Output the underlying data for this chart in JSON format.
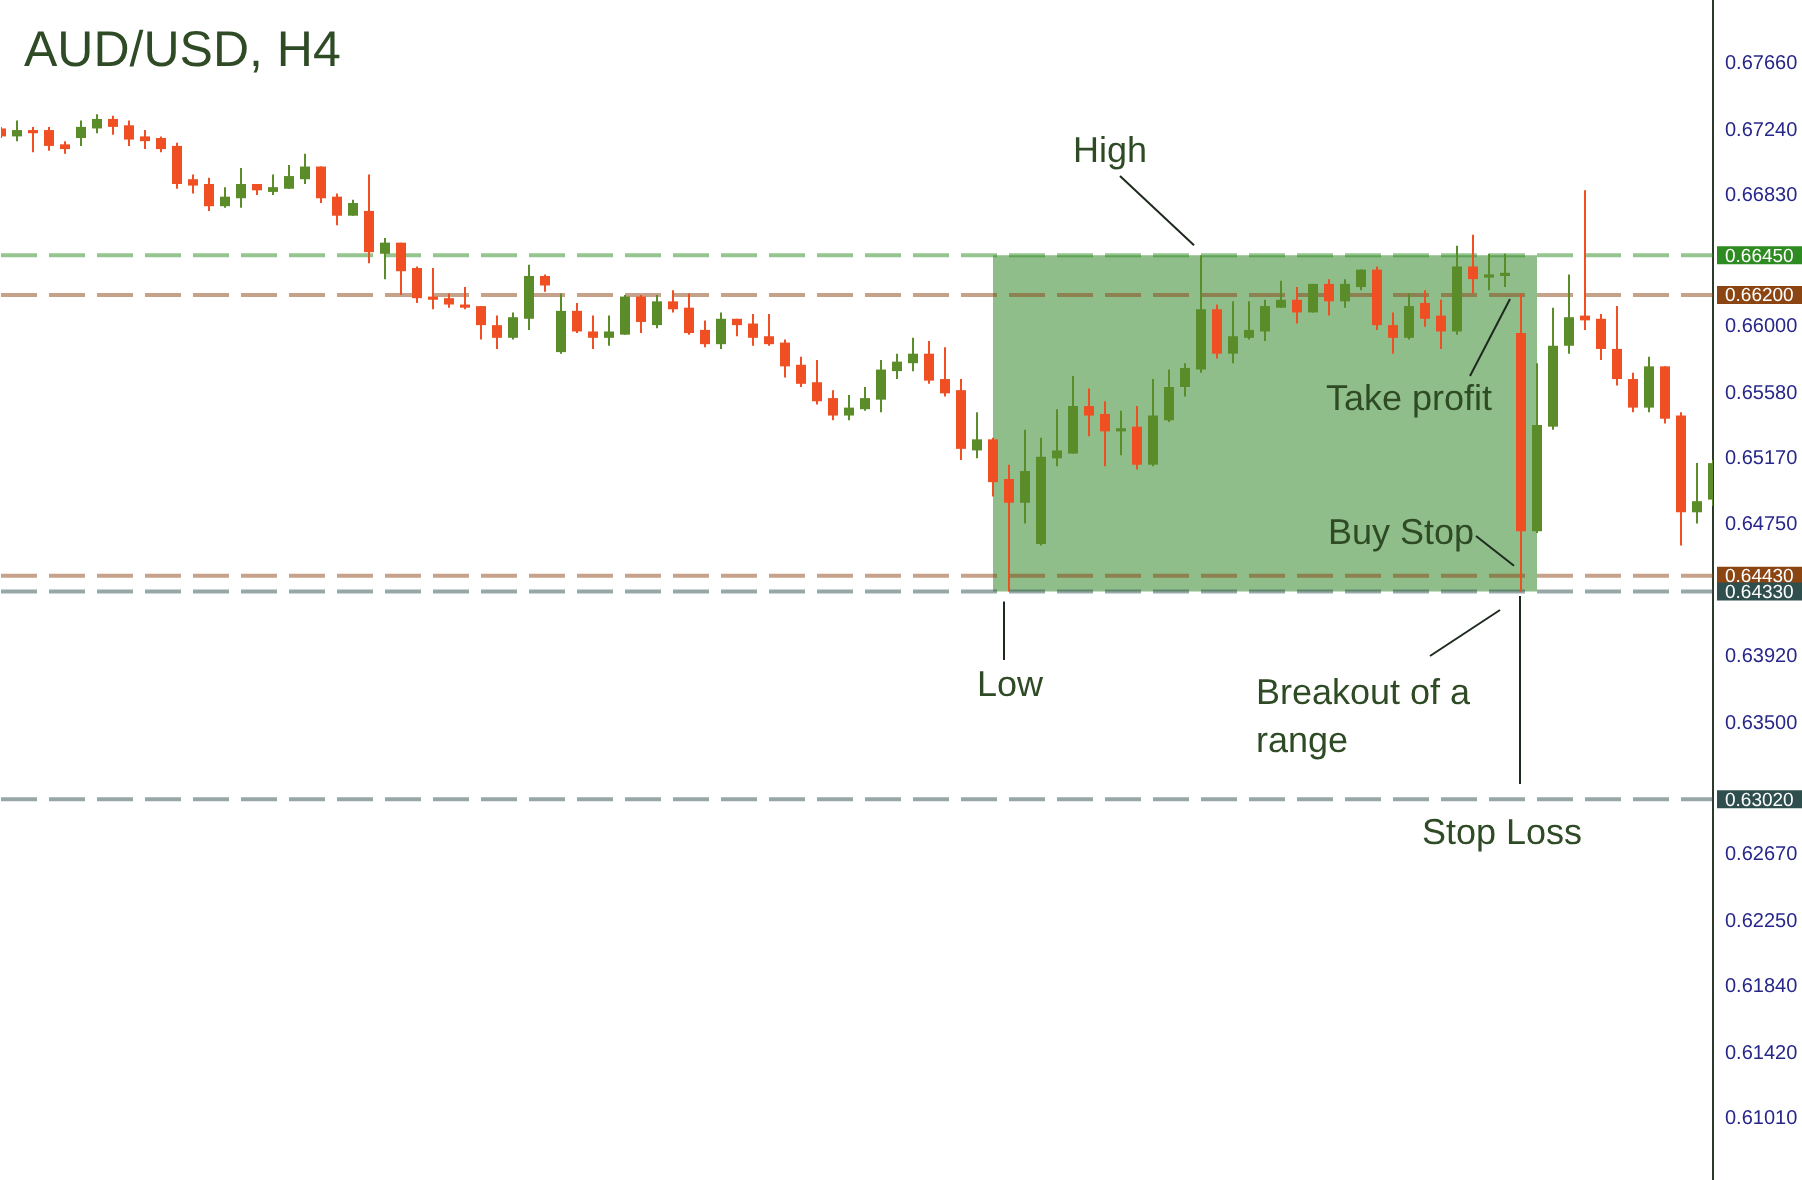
{
  "chart_data": {
    "type": "candlestick",
    "title": "AUD/USD, H4",
    "categories": [
      null,
      null,
      null,
      null,
      null,
      null,
      null,
      null,
      null,
      null,
      null,
      null,
      null,
      null,
      null,
      null,
      null,
      null,
      null,
      null,
      null,
      null,
      null,
      null,
      null,
      null,
      null,
      null,
      null,
      null,
      null,
      null,
      null,
      null,
      null,
      null,
      null,
      null,
      null,
      null,
      null,
      null,
      null,
      null,
      null,
      null,
      null,
      null,
      null,
      null,
      null,
      null,
      null,
      null,
      null,
      null,
      null,
      null,
      null,
      null,
      null,
      null,
      null,
      null,
      null,
      null,
      null,
      null,
      null,
      null,
      null,
      null,
      null,
      null,
      null,
      null,
      null,
      null,
      null,
      null,
      null,
      null,
      null,
      null,
      null,
      null,
      null,
      null,
      null,
      null,
      null,
      null,
      null,
      null,
      null,
      null,
      null,
      null,
      null,
      null,
      null,
      null,
      null,
      null,
      null,
      null,
      null,
      null
    ],
    "ohlc": [
      [
        0.6725,
        0.6726,
        0.6719,
        0.672
      ],
      [
        0.672,
        0.673,
        0.6717,
        0.6724
      ],
      [
        0.6724,
        0.6726,
        0.671,
        0.6722
      ],
      [
        0.6724,
        0.6726,
        0.6711,
        0.6714
      ],
      [
        0.6715,
        0.6717,
        0.6709,
        0.6712
      ],
      [
        0.6719,
        0.673,
        0.6714,
        0.6726
      ],
      [
        0.6725,
        0.6734,
        0.6722,
        0.6731
      ],
      [
        0.6731,
        0.6733,
        0.6721,
        0.6726
      ],
      [
        0.6727,
        0.673,
        0.6714,
        0.6718
      ],
      [
        0.672,
        0.6724,
        0.6712,
        0.6717
      ],
      [
        0.6719,
        0.672,
        0.671,
        0.6712
      ],
      [
        0.6714,
        0.6716,
        0.6687,
        0.669
      ],
      [
        0.6693,
        0.6696,
        0.6684,
        0.6689
      ],
      [
        0.669,
        0.6694,
        0.6673,
        0.6676
      ],
      [
        0.6676,
        0.6688,
        0.6675,
        0.6682
      ],
      [
        0.6681,
        0.67,
        0.6675,
        0.669
      ],
      [
        0.669,
        0.669,
        0.6683,
        0.6686
      ],
      [
        0.6685,
        0.6696,
        0.6683,
        0.6688
      ],
      [
        0.6687,
        0.6702,
        0.6687,
        0.6695
      ],
      [
        0.6693,
        0.6709,
        0.669,
        0.6701
      ],
      [
        0.6701,
        0.6701,
        0.6678,
        0.6681
      ],
      [
        0.6682,
        0.6684,
        0.6664,
        0.667
      ],
      [
        0.667,
        0.668,
        0.667,
        0.6678
      ],
      [
        0.6673,
        0.6696,
        0.664,
        0.6647
      ],
      [
        0.6646,
        0.6656,
        0.663,
        0.6653
      ],
      [
        0.6653,
        0.6653,
        0.662,
        0.6635
      ],
      [
        0.6637,
        0.6638,
        0.6615,
        0.6618
      ],
      [
        0.6619,
        0.6637,
        0.6611,
        0.6617
      ],
      [
        0.6618,
        0.6621,
        0.6612,
        0.6614
      ],
      [
        0.6614,
        0.6625,
        0.6611,
        0.6612
      ],
      [
        0.6613,
        0.6613,
        0.6592,
        0.6601
      ],
      [
        0.6601,
        0.6607,
        0.6586,
        0.6593
      ],
      [
        0.6593,
        0.6609,
        0.6592,
        0.6606
      ],
      [
        0.6605,
        0.6639,
        0.6598,
        0.6632
      ],
      [
        0.6632,
        0.6633,
        0.6622,
        0.6626
      ],
      [
        0.6584,
        0.6621,
        0.6583,
        0.661
      ],
      [
        0.661,
        0.6615,
        0.6596,
        0.6597
      ],
      [
        0.6597,
        0.6607,
        0.6586,
        0.6593
      ],
      [
        0.6593,
        0.6607,
        0.6588,
        0.6597
      ],
      [
        0.6595,
        0.662,
        0.6595,
        0.6619
      ],
      [
        0.6619,
        0.662,
        0.6596,
        0.6603
      ],
      [
        0.6601,
        0.662,
        0.6599,
        0.6616
      ],
      [
        0.6616,
        0.6623,
        0.6609,
        0.6611
      ],
      [
        0.6612,
        0.6621,
        0.6595,
        0.6596
      ],
      [
        0.6598,
        0.6604,
        0.6587,
        0.6589
      ],
      [
        0.6589,
        0.6609,
        0.6586,
        0.6605
      ],
      [
        0.6605,
        0.6605,
        0.6594,
        0.6601
      ],
      [
        0.6602,
        0.6608,
        0.6588,
        0.6593
      ],
      [
        0.6594,
        0.6608,
        0.6588,
        0.6589
      ],
      [
        0.659,
        0.6592,
        0.6568,
        0.6575
      ],
      [
        0.6576,
        0.6581,
        0.6562,
        0.6564
      ],
      [
        0.6565,
        0.6579,
        0.6551,
        0.6553
      ],
      [
        0.6555,
        0.656,
        0.6541,
        0.6544
      ],
      [
        0.6544,
        0.6557,
        0.6541,
        0.6549
      ],
      [
        0.6548,
        0.6562,
        0.6547,
        0.6555
      ],
      [
        0.6554,
        0.6579,
        0.6546,
        0.6573
      ],
      [
        0.6572,
        0.6583,
        0.6567,
        0.6578
      ],
      [
        0.6577,
        0.6593,
        0.6572,
        0.6583
      ],
      [
        0.6583,
        0.6591,
        0.6564,
        0.6566
      ],
      [
        0.6567,
        0.6587,
        0.6556,
        0.6558
      ],
      [
        0.656,
        0.6567,
        0.6516,
        0.6523
      ],
      [
        0.6522,
        0.6546,
        0.6517,
        0.6529
      ],
      [
        0.6529,
        0.653,
        0.6493,
        0.6502
      ],
      [
        0.6504,
        0.6513,
        0.6433,
        0.6489
      ],
      [
        0.6489,
        0.6535,
        0.6476,
        0.6509
      ],
      [
        0.6463,
        0.653,
        0.6462,
        0.6518
      ],
      [
        0.6517,
        0.6548,
        0.6512,
        0.6522
      ],
      [
        0.652,
        0.6569,
        0.652,
        0.655
      ],
      [
        0.655,
        0.6561,
        0.6531,
        0.6544
      ],
      [
        0.6545,
        0.6553,
        0.6512,
        0.6534
      ],
      [
        0.6534,
        0.6547,
        0.6519,
        0.6536
      ],
      [
        0.6537,
        0.655,
        0.651,
        0.6513
      ],
      [
        0.6513,
        0.6567,
        0.6512,
        0.6544
      ],
      [
        0.6541,
        0.6573,
        0.654,
        0.6562
      ],
      [
        0.6562,
        0.6577,
        0.6556,
        0.6574
      ],
      [
        0.6573,
        0.6645,
        0.6571,
        0.6611
      ],
      [
        0.6611,
        0.6614,
        0.658,
        0.6583
      ],
      [
        0.6583,
        0.6616,
        0.6577,
        0.6594
      ],
      [
        0.6593,
        0.6616,
        0.6592,
        0.6598
      ],
      [
        0.6597,
        0.6617,
        0.6591,
        0.6613
      ],
      [
        0.6612,
        0.6629,
        0.6612,
        0.6617
      ],
      [
        0.6617,
        0.6625,
        0.6602,
        0.6609
      ],
      [
        0.6609,
        0.6627,
        0.6609,
        0.6627
      ],
      [
        0.6627,
        0.663,
        0.6607,
        0.6616
      ],
      [
        0.6616,
        0.663,
        0.6612,
        0.6627
      ],
      [
        0.6625,
        0.6636,
        0.6623,
        0.6636
      ],
      [
        0.6636,
        0.6638,
        0.6598,
        0.6601
      ],
      [
        0.6601,
        0.6609,
        0.6583,
        0.6593
      ],
      [
        0.6593,
        0.6621,
        0.6592,
        0.6613
      ],
      [
        0.6615,
        0.6623,
        0.66,
        0.6605
      ],
      [
        0.6607,
        0.6617,
        0.6586,
        0.6597
      ],
      [
        0.6597,
        0.6651,
        0.6595,
        0.6638
      ],
      [
        0.6638,
        0.6658,
        0.6621,
        0.663
      ],
      [
        0.6631,
        0.6646,
        0.6623,
        0.6633
      ],
      [
        0.6632,
        0.6646,
        0.6625,
        0.6634
      ],
      [
        0.6596,
        0.6621,
        0.6433,
        0.6471
      ],
      [
        0.6471,
        0.6577,
        0.647,
        0.6538
      ],
      [
        0.6537,
        0.6612,
        0.6535,
        0.6588
      ],
      [
        0.6588,
        0.6633,
        0.6583,
        0.6606
      ],
      [
        0.6607,
        0.6686,
        0.6598,
        0.6604
      ],
      [
        0.6605,
        0.6608,
        0.6579,
        0.6586
      ],
      [
        0.6586,
        0.6613,
        0.6563,
        0.6567
      ],
      [
        0.6567,
        0.6571,
        0.6546,
        0.6549
      ],
      [
        0.6549,
        0.6581,
        0.6546,
        0.6575
      ],
      [
        0.6575,
        0.6575,
        0.6539,
        0.6542
      ],
      [
        0.6544,
        0.6546,
        0.6462,
        0.6483
      ],
      [
        0.6483,
        0.6514,
        0.6476,
        0.649
      ],
      [
        0.6491,
        0.6516,
        0.6487,
        0.6514
      ]
    ],
    "colors": [
      "#f04e23",
      "#5b8c2a",
      "#f04e23",
      "#f04e23",
      "#f04e23",
      "#5b8c2a",
      "#5b8c2a",
      "#f04e23",
      "#f04e23",
      "#f04e23",
      "#f04e23",
      "#f04e23",
      "#f04e23",
      "#f04e23",
      "#5b8c2a",
      "#5b8c2a",
      "#f04e23",
      "#5b8c2a",
      "#5b8c2a",
      "#5b8c2a",
      "#f04e23",
      "#f04e23",
      "#5b8c2a",
      "#f04e23",
      "#5b8c2a",
      "#f04e23",
      "#f04e23",
      "#f04e23",
      "#f04e23",
      "#f04e23",
      "#f04e23",
      "#f04e23",
      "#5b8c2a",
      "#5b8c2a",
      "#f04e23",
      "#5b8c2a",
      "#f04e23",
      "#f04e23",
      "#5b8c2a",
      "#5b8c2a",
      "#f04e23",
      "#5b8c2a",
      "#f04e23",
      "#f04e23",
      "#f04e23",
      "#5b8c2a",
      "#f04e23",
      "#f04e23",
      "#f04e23",
      "#f04e23",
      "#f04e23",
      "#f04e23",
      "#f04e23",
      "#5b8c2a",
      "#5b8c2a",
      "#5b8c2a",
      "#5b8c2a",
      "#5b8c2a",
      "#f04e23",
      "#f04e23",
      "#f04e23",
      "#5b8c2a",
      "#f04e23",
      "#f04e23",
      "#5b8c2a",
      "#5b8c2a",
      "#5b8c2a",
      "#5b8c2a",
      "#f04e23",
      "#f04e23",
      "#5b8c2a",
      "#f04e23",
      "#5b8c2a",
      "#5b8c2a",
      "#5b8c2a",
      "#5b8c2a",
      "#f04e23",
      "#5b8c2a",
      "#5b8c2a",
      "#5b8c2a",
      "#5b8c2a",
      "#f04e23",
      "#5b8c2a",
      "#f04e23",
      "#5b8c2a",
      "#5b8c2a",
      "#f04e23",
      "#f04e23",
      "#5b8c2a",
      "#f04e23",
      "#f04e23",
      "#5b8c2a",
      "#f04e23",
      "#5b8c2a",
      "#5b8c2a",
      "#f04e23",
      "#5b8c2a",
      "#5b8c2a",
      "#5b8c2a",
      "#f04e23",
      "#f04e23",
      "#f04e23",
      "#f04e23",
      "#5b8c2a",
      "#f04e23",
      "#f04e23",
      "#5b8c2a",
      "#5b8c2a"
    ],
    "ylim": [
      0.6062,
      0.6806
    ],
    "yticks": [
      {
        "value": 0.6766,
        "label": "0.67660"
      },
      {
        "value": 0.6724,
        "label": "0.67240"
      },
      {
        "value": 0.6683,
        "label": "0.66830"
      },
      {
        "value": 0.66,
        "label": "0.66000"
      },
      {
        "value": 0.6558,
        "label": "0.65580"
      },
      {
        "value": 0.6517,
        "label": "0.65170"
      },
      {
        "value": 0.6475,
        "label": "0.64750"
      },
      {
        "value": 0.6392,
        "label": "0.63920"
      },
      {
        "value": 0.635,
        "label": "0.63500"
      },
      {
        "value": 0.6267,
        "label": "0.62670"
      },
      {
        "value": 0.6225,
        "label": "0.62250"
      },
      {
        "value": 0.6184,
        "label": "0.61840"
      },
      {
        "value": 0.6142,
        "label": "0.61420"
      },
      {
        "value": 0.6101,
        "label": "0.61010"
      }
    ],
    "bands": [
      {
        "axis": "y",
        "from": 0.6433,
        "to": 0.6645,
        "color": "#8fbe8a"
      }
    ],
    "ref_lines": [
      {
        "axis": "y",
        "value": 0.6645,
        "label": "0.66450",
        "color": "#2e8b22",
        "line_style": "dashed"
      },
      {
        "axis": "y",
        "value": 0.662,
        "label": "0.66200",
        "color": "#8b4513",
        "line_style": "dashed"
      },
      {
        "axis": "y",
        "value": 0.6443,
        "label": "0.64430",
        "color": "#8b4513",
        "line_style": "dashed"
      },
      {
        "axis": "y",
        "value": 0.6433,
        "label": "0.64330",
        "color": "#2f4f4f",
        "line_style": "dashed"
      },
      {
        "axis": "y",
        "value": 0.6302,
        "label": "0.63020",
        "color": "#2f4f4f",
        "line_style": "dashed"
      }
    ],
    "annotations": [
      {
        "text": "High",
        "y": 0.6645
      },
      {
        "text": "Take profit",
        "y": 0.662
      },
      {
        "text": "Buy Stop",
        "y": 0.6443
      },
      {
        "text": "Low",
        "y": 0.6433
      },
      "Breakout of a range",
      "Stop Loss"
    ],
    "grid": false,
    "legend": false,
    "tick_labels": "y"
  }
}
